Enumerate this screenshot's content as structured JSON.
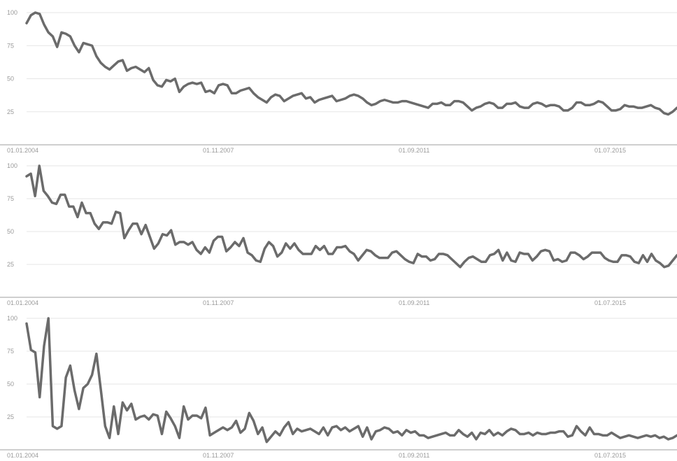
{
  "chart_data": [
    {
      "type": "line",
      "title": "",
      "xlabel": "",
      "ylabel": "",
      "ylim": [
        0,
        100
      ],
      "yticks": [
        "25",
        "50",
        "75",
        "100"
      ],
      "xticks": [
        "01.01.2004",
        "01.11.2007",
        "01.09.2011",
        "01.07.2015"
      ],
      "grid": true,
      "series": [
        {
          "values": [
            92,
            98,
            100,
            99,
            91,
            85,
            82,
            74,
            85,
            84,
            82,
            75,
            70,
            77,
            76,
            75,
            67,
            62,
            59,
            57,
            60,
            63,
            64,
            56,
            58,
            59,
            57,
            55,
            58,
            49,
            45,
            44,
            49,
            48,
            50,
            40,
            44,
            46,
            47,
            46,
            47,
            40,
            41,
            39,
            45,
            46,
            45,
            39,
            39,
            41,
            42,
            43,
            39,
            36,
            34,
            32,
            36,
            38,
            37,
            33,
            35,
            37,
            38,
            39,
            35,
            36,
            32,
            34,
            35,
            36,
            37,
            33,
            34,
            35,
            37,
            38,
            37,
            35,
            32,
            30,
            31,
            33,
            34,
            33,
            32,
            32,
            33,
            33,
            32,
            31,
            30,
            29,
            28,
            31,
            31,
            32,
            30,
            30,
            33,
            33,
            32,
            29,
            26,
            28,
            29,
            31,
            32,
            31,
            28,
            28,
            31,
            31,
            32,
            29,
            28,
            28,
            31,
            32,
            31,
            29,
            30,
            30,
            29,
            26,
            26,
            28,
            32,
            32,
            30,
            30,
            31,
            33,
            32,
            29,
            26,
            26,
            27,
            30,
            29,
            29,
            28,
            28,
            29,
            30,
            28,
            27,
            24,
            23,
            25,
            28
          ]
        },
        {
          "values": [
            92,
            94,
            77,
            100,
            81,
            77,
            72,
            71,
            78,
            78,
            69,
            69,
            61,
            72,
            64,
            64,
            56,
            52,
            57,
            57,
            56,
            65,
            64,
            45,
            51,
            56,
            56,
            48,
            55,
            46,
            37,
            41,
            48,
            47,
            51,
            40,
            42,
            42,
            40,
            42,
            36,
            33,
            38,
            34,
            43,
            46,
            46,
            35,
            38,
            42,
            39,
            45,
            34,
            32,
            28,
            27,
            37,
            42,
            39,
            31,
            34,
            41,
            37,
            41,
            36,
            33,
            33,
            33,
            39,
            36,
            39,
            33,
            33,
            38,
            38,
            39,
            35,
            33,
            28,
            32,
            36,
            35,
            32,
            30,
            30,
            30,
            34,
            35,
            32,
            29,
            27,
            26,
            33,
            31,
            31,
            28,
            29,
            33,
            33,
            32,
            29,
            26,
            23,
            27,
            30,
            31,
            29,
            27,
            27,
            32,
            33,
            36,
            28,
            34,
            28,
            27,
            34,
            33,
            33,
            28,
            31,
            35,
            36,
            35,
            28,
            29,
            27,
            28,
            34,
            34,
            32,
            29,
            31,
            34,
            34,
            34,
            30,
            28,
            27,
            27,
            32,
            32,
            31,
            27,
            26,
            32,
            27,
            33,
            28,
            26,
            23,
            24,
            28,
            32
          ]
        },
        {
          "values": [
            96,
            76,
            74,
            40,
            79,
            100,
            18,
            16,
            18,
            55,
            64,
            45,
            31,
            47,
            50,
            57,
            73,
            46,
            18,
            9,
            33,
            12,
            36,
            30,
            35,
            23,
            25,
            26,
            23,
            27,
            26,
            12,
            29,
            24,
            18,
            9,
            33,
            23,
            26,
            26,
            24,
            32,
            11,
            13,
            15,
            17,
            15,
            17,
            22,
            13,
            16,
            28,
            22,
            12,
            17,
            6,
            10,
            14,
            11,
            17,
            21,
            12,
            16,
            14,
            15,
            16,
            14,
            12,
            17,
            11,
            17,
            18,
            15,
            17,
            14,
            16,
            18,
            10,
            17,
            8,
            14,
            15,
            17,
            16,
            13,
            14,
            11,
            15,
            13,
            14,
            11,
            11,
            9,
            10,
            11,
            12,
            13,
            11,
            11,
            15,
            12,
            10,
            13,
            8,
            13,
            12,
            15,
            11,
            13,
            11,
            14,
            16,
            15,
            12,
            12,
            13,
            11,
            13,
            12,
            12,
            13,
            13,
            14,
            14,
            10,
            11,
            18,
            14,
            11,
            17,
            12,
            12,
            11,
            11,
            13,
            11,
            9,
            10,
            11,
            10,
            9,
            10,
            11,
            10,
            11,
            9,
            10,
            8,
            9,
            11
          ]
        }
      ]
    }
  ]
}
